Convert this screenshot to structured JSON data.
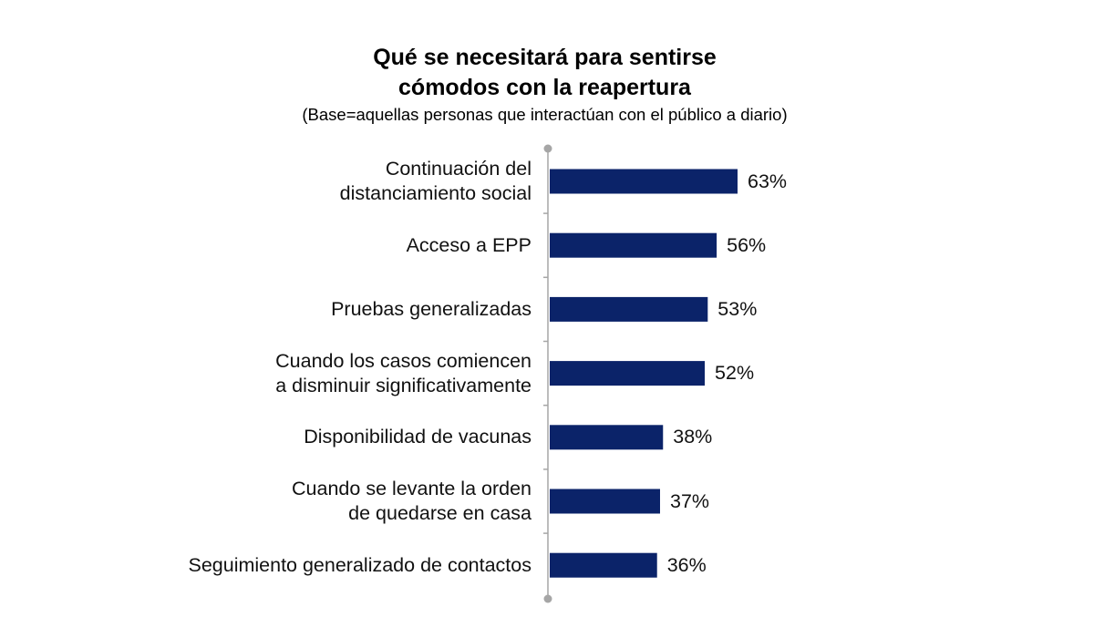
{
  "chart_data": {
    "type": "bar",
    "orientation": "horizontal",
    "title_lines": [
      "Qué se necesitará para sentirse",
      "cómodos con la reapertura"
    ],
    "subtitle": "(Base=aquellas personas que interactúan con el público a diario)",
    "categories": [
      [
        "Continuación del",
        "distanciamiento social"
      ],
      [
        "Acceso a EPP"
      ],
      [
        "Pruebas generalizadas"
      ],
      [
        "Cuando los casos comiencen",
        "a disminuir significativamente"
      ],
      [
        "Disponibilidad de vacunas"
      ],
      [
        "Cuando se levante la orden",
        "de quedarse en casa"
      ],
      [
        "Seguimiento generalizado de contactos"
      ]
    ],
    "values": [
      63,
      56,
      53,
      52,
      38,
      37,
      36
    ],
    "value_labels": [
      "63%",
      "56%",
      "53%",
      "52%",
      "38%",
      "37%",
      "36%"
    ],
    "bar_color": "#0b2369",
    "axis_color": "#a6a6a6",
    "xlim": [
      0,
      100
    ],
    "grid": false,
    "legend": "none"
  }
}
